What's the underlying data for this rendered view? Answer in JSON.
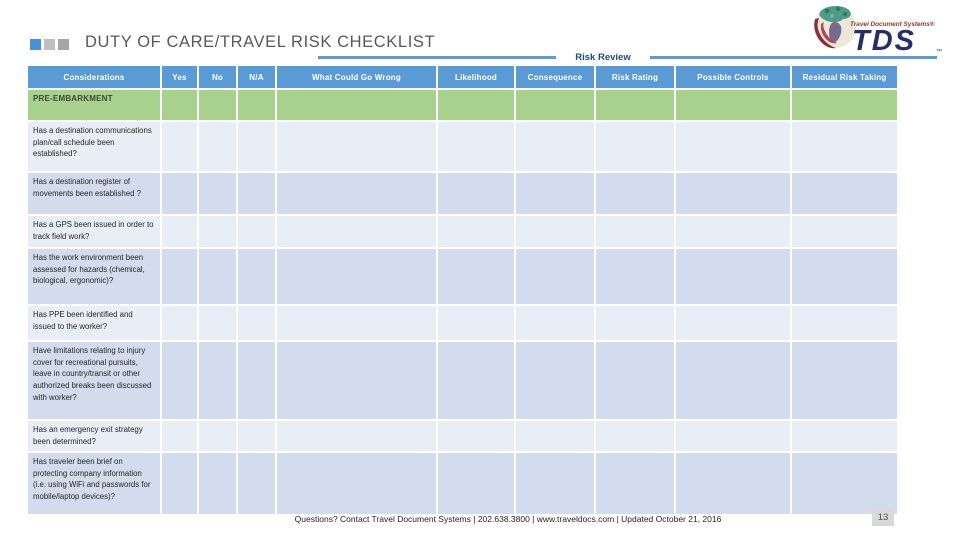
{
  "header": {
    "title": "DUTY OF CARE/TRAVEL RISK CHECKLIST",
    "risk_review_label": "Risk Review"
  },
  "logo": {
    "brand_text": "Travel Document Systems®",
    "brand_abbr": "TDS",
    "trademark": "™"
  },
  "table": {
    "columns": [
      "Considerations",
      "Yes",
      "No",
      "N/A",
      "What Could Go Wrong",
      "Likelihood",
      "Consequence",
      "Risk Rating",
      "Possible Controls",
      "Residual Risk Taking"
    ],
    "section_header": "PRE-EMBARKMENT",
    "rows": [
      "Has a destination communications plan/call schedule been established?",
      "Has a destination register of movements been established ?",
      "Has a GPS been issued in order to track field work?",
      "Has the work environment been assessed for hazards (chemical, biological, ergonomic)?",
      "Has PPE been identified and issued to the worker?",
      "Have limitations relating to injury cover for recreational pursuits, leave in country/transit or other authorized breaks been discussed with worker?",
      "Has an emergency exit strategy been determined?",
      "Has traveler been brief on protecting company information (i.e. using WiFi and passwords for mobile/laptop devices)?"
    ]
  },
  "footer": {
    "text": "Questions? Contact Travel Document Systems | 202.638.3800 | www.traveldocs.com | Updated October 21, 2016",
    "page_number": "13"
  },
  "colors": {
    "header_blue": "#5b9bd5",
    "section_green": "#a9d18e",
    "band_light": "#e9eef6",
    "band_dark": "#d3dcec",
    "title_gray": "#595959",
    "risk_review_navy": "#1f4e79",
    "logo_navy": "#252e66",
    "logo_maroon": "#8c2f39"
  }
}
